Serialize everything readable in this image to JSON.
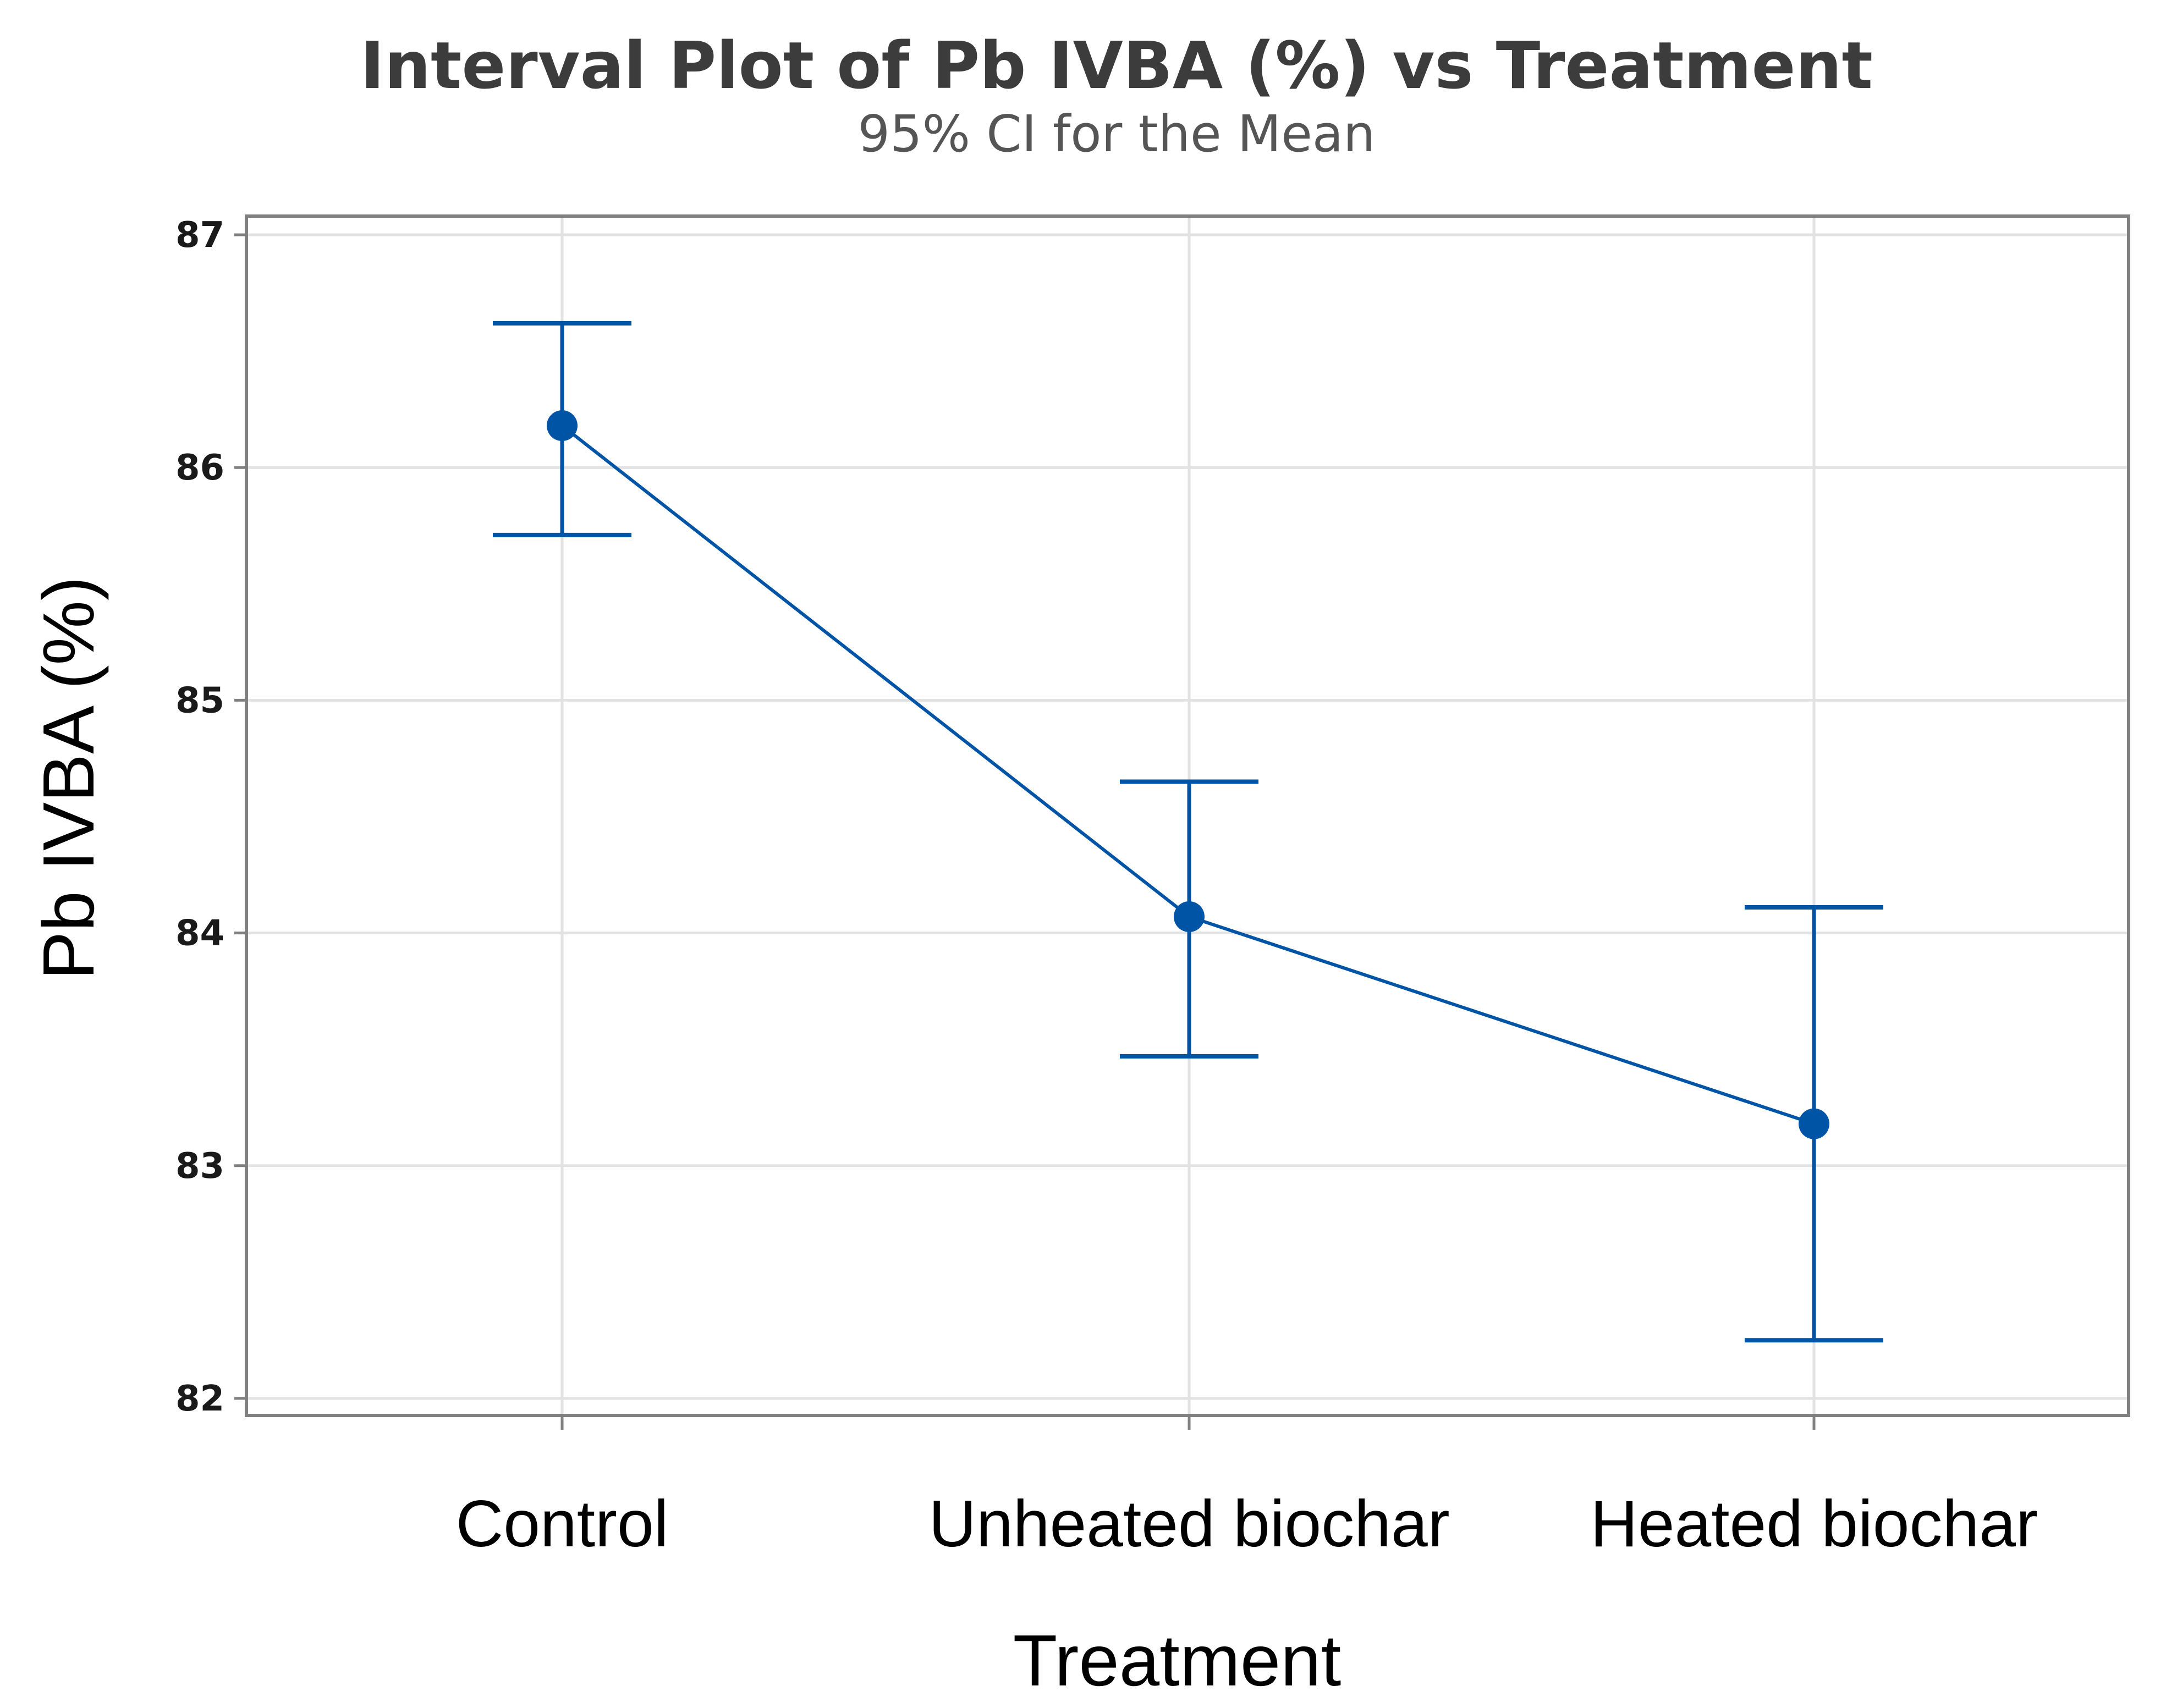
{
  "chart_data": {
    "type": "interval",
    "title": "Interval Plot of Pb IVBA (%) vs Treatment",
    "subtitle": "95% CI for the Mean",
    "xlabel": "Treatment",
    "ylabel": "Pb IVBA (%)",
    "categories": [
      "Control",
      "Unheated biochar",
      "Heated biochar"
    ],
    "means": [
      86.18,
      84.07,
      83.18
    ],
    "ci_lower": [
      85.71,
      83.47,
      82.25
    ],
    "ci_upper": [
      86.62,
      84.65,
      84.11
    ],
    "yticks": [
      82,
      83,
      84,
      85,
      86,
      87
    ],
    "ylim": [
      81.92,
      87.08
    ],
    "grid": true,
    "color": "#0054a6"
  }
}
